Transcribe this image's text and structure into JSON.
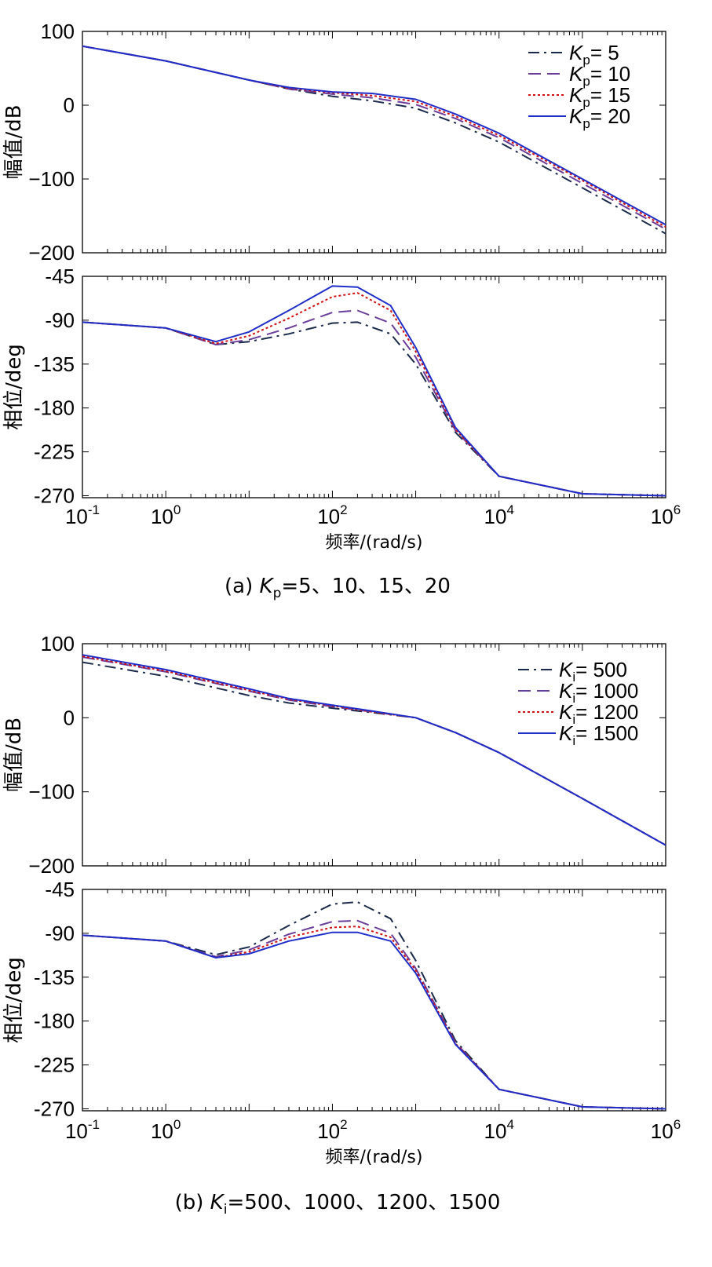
{
  "chart_data": [
    {
      "type": "line",
      "panel": "a",
      "title": "",
      "caption": {
        "prefix": "(a) ",
        "sym": "K",
        "sub": "p",
        "rest": "=5、10、15、20"
      },
      "xlabel": "频率/(rad/s)",
      "xscale": "log",
      "xlim": [
        0.1,
        1000000
      ],
      "x_ticks": [
        {
          "base": "10",
          "exp": "-1"
        },
        {
          "base": "10",
          "exp": "0"
        },
        {
          "base": "10",
          "exp": "2"
        },
        {
          "base": "10",
          "exp": "4"
        },
        {
          "base": "10",
          "exp": "6"
        }
      ],
      "legend_position": "top-right",
      "magnitude": {
        "ylabel": "幅值/dB",
        "ylim": [
          -200,
          100
        ],
        "yticks": [
          "100",
          "0",
          "−100",
          "−200"
        ],
        "series": [
          {
            "sym": "K",
            "sub": "p",
            "eq": "= 5",
            "color": "#1a2a4a",
            "dash": "14,6,3,6",
            "x": [
              0.1,
              1,
              10,
              30,
              100,
              300,
              1000,
              3000,
              10000,
              100000,
              1000000
            ],
            "values": [
              80,
              60,
              34,
              22,
              12,
              6,
              -4,
              -24,
              -50,
              -112,
              -174
            ]
          },
          {
            "sym": "K",
            "sub": "p",
            "eq": "= 10",
            "color": "#6a3d9a",
            "dash": "16,8",
            "x": [
              0.1,
              1,
              10,
              30,
              100,
              300,
              1000,
              3000,
              10000,
              100000,
              1000000
            ],
            "values": [
              80,
              60,
              34,
              22,
              15,
              10,
              1,
              -18,
              -44,
              -106,
              -168
            ]
          },
          {
            "sym": "K",
            "sub": "p",
            "eq": "= 15",
            "color": "#d01010",
            "dash": "3,3",
            "x": [
              0.1,
              1,
              10,
              30,
              100,
              300,
              1000,
              3000,
              10000,
              100000,
              1000000
            ],
            "values": [
              80,
              60,
              34,
              23,
              17,
              13,
              5,
              -15,
              -41,
              -102,
              -165
            ]
          },
          {
            "sym": "K",
            "sub": "p",
            "eq": "= 20",
            "color": "#1f2ec8",
            "dash": "",
            "x": [
              0.1,
              1,
              10,
              30,
              100,
              300,
              1000,
              3000,
              10000,
              100000,
              1000000
            ],
            "values": [
              80,
              60,
              34,
              24,
              18,
              16,
              8,
              -12,
              -38,
              -100,
              -162
            ]
          }
        ]
      },
      "phase": {
        "ylabel": "相位/deg",
        "ylim": [
          -272,
          -45
        ],
        "yticks": [
          "-45",
          "-90",
          "-135",
          "-180",
          "-225",
          "-270"
        ],
        "series": [
          {
            "name": "Kp=5",
            "color": "#1a2a4a",
            "dash": "14,6,3,6",
            "x": [
              0.1,
              1,
              4,
              10,
              30,
              100,
              200,
              500,
              1000,
              3000,
              10000,
              100000,
              1000000
            ],
            "values": [
              -92,
              -98,
              -115,
              -112,
              -104,
              -93,
              -92,
              -104,
              -135,
              -205,
              -250,
              -268,
              -270
            ]
          },
          {
            "name": "Kp=10",
            "color": "#6a3d9a",
            "dash": "16,8",
            "x": [
              0.1,
              1,
              4,
              10,
              30,
              100,
              200,
              500,
              1000,
              3000,
              10000,
              100000,
              1000000
            ],
            "values": [
              -92,
              -98,
              -115,
              -110,
              -98,
              -82,
              -80,
              -93,
              -128,
              -203,
              -250,
              -268,
              -270
            ]
          },
          {
            "name": "Kp=15",
            "color": "#d01010",
            "dash": "3,3",
            "x": [
              0.1,
              1,
              4,
              10,
              30,
              100,
              200,
              500,
              1000,
              3000,
              10000,
              100000,
              1000000
            ],
            "values": [
              -92,
              -98,
              -114,
              -106,
              -88,
              -66,
              -62,
              -80,
              -122,
              -202,
              -250,
              -268,
              -270
            ]
          },
          {
            "name": "Kp=20",
            "color": "#1f2ec8",
            "dash": "",
            "x": [
              0.1,
              1,
              4,
              10,
              30,
              100,
              200,
              500,
              1000,
              3000,
              10000,
              100000,
              1000000
            ],
            "values": [
              -92,
              -98,
              -112,
              -102,
              -80,
              -55,
              -56,
              -75,
              -118,
              -200,
              -250,
              -268,
              -270
            ]
          }
        ]
      }
    },
    {
      "type": "line",
      "panel": "b",
      "title": "",
      "caption": {
        "prefix": "(b) ",
        "sym": "K",
        "sub": "i",
        "rest": "=500、1000、1200、1500"
      },
      "xlabel": "频率/(rad/s)",
      "xscale": "log",
      "xlim": [
        0.1,
        1000000
      ],
      "x_ticks": [
        {
          "base": "10",
          "exp": "-1"
        },
        {
          "base": "10",
          "exp": "0"
        },
        {
          "base": "10",
          "exp": "2"
        },
        {
          "base": "10",
          "exp": "4"
        },
        {
          "base": "10",
          "exp": "6"
        }
      ],
      "legend_position": "top-right",
      "magnitude": {
        "ylabel": "幅值/dB",
        "ylim": [
          -200,
          100
        ],
        "yticks": [
          "100",
          "0",
          "−100",
          "−200"
        ],
        "series": [
          {
            "sym": "K",
            "sub": "i",
            "eq": "= 500",
            "color": "#1a2a4a",
            "dash": "14,6,3,6",
            "x": [
              0.1,
              1,
              10,
              30,
              100,
              300,
              1000,
              3000,
              10000,
              100000,
              1000000
            ],
            "values": [
              75,
              56,
              30,
              20,
              13,
              7,
              0,
              -20,
              -47,
              -109,
              -172
            ]
          },
          {
            "sym": "K",
            "sub": "i",
            "eq": "= 1000",
            "color": "#6a3d9a",
            "dash": "16,8",
            "x": [
              0.1,
              1,
              10,
              30,
              100,
              300,
              1000,
              3000,
              10000,
              100000,
              1000000
            ],
            "values": [
              82,
              62,
              36,
              24,
              15,
              8,
              0,
              -20,
              -47,
              -109,
              -172
            ]
          },
          {
            "sym": "K",
            "sub": "i",
            "eq": "= 1200",
            "color": "#d01010",
            "dash": "3,3",
            "x": [
              0.1,
              1,
              10,
              30,
              100,
              300,
              1000,
              3000,
              10000,
              100000,
              1000000
            ],
            "values": [
              83,
              63,
              37,
              25,
              16,
              8,
              0,
              -20,
              -47,
              -109,
              -172
            ]
          },
          {
            "sym": "K",
            "sub": "i",
            "eq": "= 1500",
            "color": "#1f2ec8",
            "dash": "",
            "x": [
              0.1,
              1,
              10,
              30,
              100,
              300,
              1000,
              3000,
              10000,
              100000,
              1000000
            ],
            "values": [
              85,
              65,
              39,
              26,
              17,
              9,
              0,
              -20,
              -47,
              -109,
              -172
            ]
          }
        ]
      },
      "phase": {
        "ylabel": "相位/deg",
        "ylim": [
          -272,
          -45
        ],
        "yticks": [
          "-45",
          "-90",
          "-135",
          "-180",
          "-225",
          "-270"
        ],
        "series": [
          {
            "name": "Ki=500",
            "color": "#1a2a4a",
            "dash": "14,6,3,6",
            "x": [
              0.1,
              1,
              4,
              10,
              30,
              100,
              200,
              500,
              1000,
              3000,
              10000,
              100000,
              1000000
            ],
            "values": [
              -92,
              -98,
              -112,
              -104,
              -82,
              -60,
              -58,
              -75,
              -118,
              -200,
              -250,
              -268,
              -270
            ]
          },
          {
            "name": "Ki=1000",
            "color": "#6a3d9a",
            "dash": "16,8",
            "x": [
              0.1,
              1,
              4,
              10,
              30,
              100,
              200,
              500,
              1000,
              3000,
              10000,
              100000,
              1000000
            ],
            "values": [
              -92,
              -98,
              -114,
              -107,
              -91,
              -78,
              -77,
              -90,
              -126,
              -202,
              -250,
              -268,
              -270
            ]
          },
          {
            "name": "Ki=1200",
            "color": "#d01010",
            "dash": "3,3",
            "x": [
              0.1,
              1,
              4,
              10,
              30,
              100,
              200,
              500,
              1000,
              3000,
              10000,
              100000,
              1000000
            ],
            "values": [
              -92,
              -98,
              -115,
              -109,
              -94,
              -84,
              -83,
              -94,
              -128,
              -203,
              -250,
              -268,
              -270
            ]
          },
          {
            "name": "Ki=1500",
            "color": "#1f2ec8",
            "dash": "",
            "x": [
              0.1,
              1,
              4,
              10,
              30,
              100,
              200,
              500,
              1000,
              3000,
              10000,
              100000,
              1000000
            ],
            "values": [
              -92,
              -98,
              -115,
              -111,
              -98,
              -89,
              -89,
              -98,
              -131,
              -204,
              -250,
              -268,
              -270
            ]
          }
        ]
      }
    }
  ]
}
